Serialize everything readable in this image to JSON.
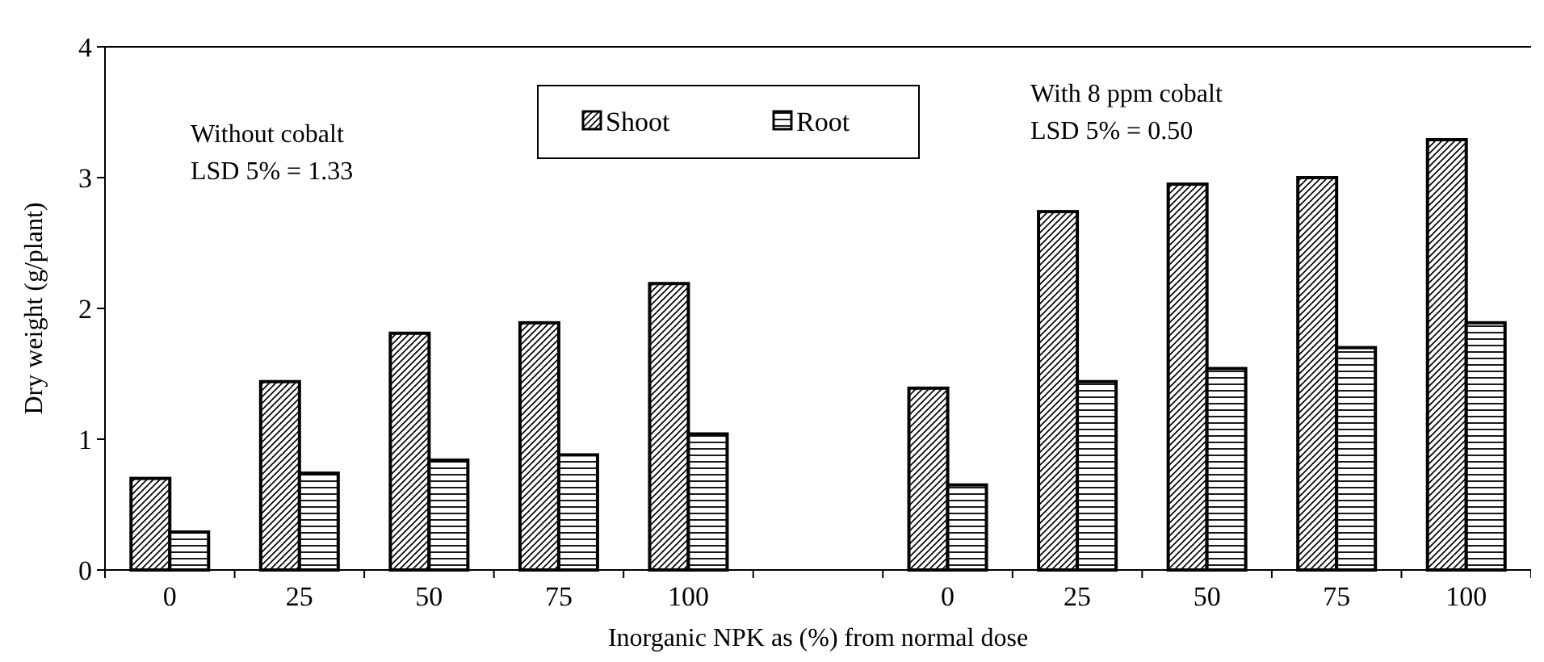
{
  "chart_data": {
    "type": "bar",
    "xlabel": "Inorganic NPK as (%) from normal dose",
    "ylabel": "Dry weight (g/plant)",
    "categories": [
      "0",
      "25",
      "50",
      "75",
      "100",
      null,
      "0",
      "25",
      "50",
      "75",
      "100"
    ],
    "series": [
      {
        "name": "Shoot",
        "color": "#000000",
        "values": [
          0.7,
          1.44,
          1.81,
          1.89,
          2.19,
          null,
          1.39,
          2.74,
          2.95,
          3.0,
          3.29
        ]
      },
      {
        "name": "Root",
        "color": "#000000",
        "values": [
          0.29,
          0.74,
          0.84,
          0.88,
          1.04,
          null,
          0.65,
          1.44,
          1.54,
          1.7,
          1.89
        ]
      }
    ],
    "ylim": [
      0,
      4
    ],
    "yticks": [
      0,
      1,
      2,
      3,
      4
    ],
    "legend": "top",
    "annotations": [
      "Without cobalt\nLSD 5% = 1.33",
      "With 8 ppm cobalt\nLSD 5% = 0.50"
    ]
  }
}
